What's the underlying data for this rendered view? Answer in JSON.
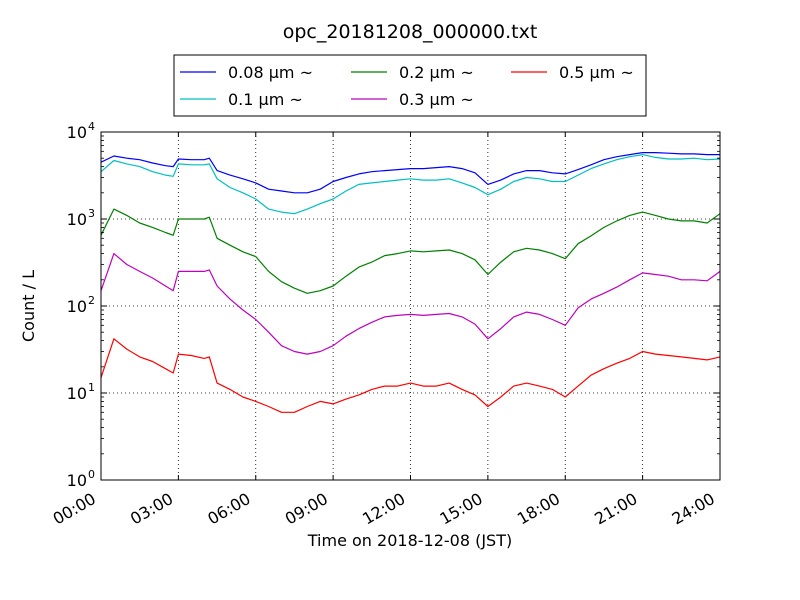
{
  "chart_data": {
    "type": "line",
    "title": "opc_20181208_000000.txt",
    "xlabel": "Time on 2018-12-08 (JST)",
    "ylabel": "Count / L",
    "yscale": "log",
    "xlim": [
      0,
      24
    ],
    "ylim": [
      1,
      10000
    ],
    "x_ticks": [
      {
        "value": 0,
        "label": "00:00"
      },
      {
        "value": 3,
        "label": "03:00"
      },
      {
        "value": 6,
        "label": "06:00"
      },
      {
        "value": 9,
        "label": "09:00"
      },
      {
        "value": 12,
        "label": "12:00"
      },
      {
        "value": 15,
        "label": "15:00"
      },
      {
        "value": 18,
        "label": "18:00"
      },
      {
        "value": 21,
        "label": "21:00"
      },
      {
        "value": 24,
        "label": "24:00"
      }
    ],
    "y_ticks": [
      {
        "value": 1,
        "base": "10",
        "exp": "0"
      },
      {
        "value": 10,
        "base": "10",
        "exp": "1"
      },
      {
        "value": 100,
        "base": "10",
        "exp": "2"
      },
      {
        "value": 1000,
        "base": "10",
        "exp": "3"
      },
      {
        "value": 10000,
        "base": "10",
        "exp": "4"
      }
    ],
    "grid": true,
    "legend_position": "top-center, above plot",
    "x": [
      0,
      0.5,
      1,
      1.5,
      2,
      2.5,
      2.8,
      3,
      3.5,
      4,
      4.2,
      4.5,
      5,
      5.5,
      6,
      6.5,
      7,
      7.5,
      8,
      8.5,
      9,
      9.5,
      10,
      10.5,
      11,
      11.5,
      12,
      12.5,
      13,
      13.5,
      14,
      14.5,
      15,
      15.5,
      16,
      16.5,
      17,
      17.5,
      18,
      18.5,
      19,
      19.5,
      20,
      20.5,
      21,
      21.5,
      22,
      22.5,
      23,
      23.5,
      24
    ],
    "series": [
      {
        "name": "0.08 μm ~",
        "color": "#0000ff",
        "values": [
          4500,
          5300,
          5000,
          4800,
          4400,
          4100,
          4000,
          4900,
          4800,
          4800,
          5000,
          3600,
          3200,
          2900,
          2600,
          2200,
          2100,
          2000,
          2000,
          2200,
          2700,
          3000,
          3300,
          3500,
          3600,
          3700,
          3800,
          3800,
          3900,
          4000,
          3800,
          3400,
          2500,
          2800,
          3300,
          3600,
          3600,
          3400,
          3300,
          3700,
          4200,
          4800,
          5200,
          5500,
          5800,
          5800,
          5700,
          5600,
          5600,
          5500,
          5500
        ]
      },
      {
        "name": "0.1 μm ~",
        "color": "#00bfbf",
        "values": [
          3500,
          4700,
          4300,
          4000,
          3500,
          3200,
          3100,
          4300,
          4200,
          4200,
          4300,
          2900,
          2300,
          2000,
          1700,
          1300,
          1200,
          1150,
          1300,
          1500,
          1700,
          2100,
          2500,
          2600,
          2700,
          2800,
          2900,
          2800,
          2800,
          2900,
          2600,
          2300,
          1900,
          2200,
          2700,
          3000,
          2900,
          2700,
          2700,
          3200,
          3800,
          4300,
          4800,
          5200,
          5500,
          5100,
          4900,
          4900,
          5000,
          4800,
          4900
        ]
      },
      {
        "name": "0.2 μm ~",
        "color": "#008000",
        "values": [
          650,
          1300,
          1100,
          900,
          800,
          700,
          650,
          1000,
          1000,
          1000,
          1050,
          600,
          500,
          420,
          370,
          250,
          190,
          160,
          140,
          150,
          170,
          220,
          280,
          320,
          380,
          400,
          430,
          420,
          430,
          440,
          400,
          340,
          230,
          320,
          420,
          460,
          440,
          400,
          350,
          520,
          640,
          800,
          950,
          1100,
          1200,
          1100,
          1000,
          950,
          950,
          900,
          1150
        ]
      },
      {
        "name": "0.3 μm ~",
        "color": "#bf00bf",
        "values": [
          150,
          400,
          300,
          250,
          210,
          170,
          150,
          250,
          250,
          250,
          260,
          170,
          120,
          90,
          70,
          50,
          35,
          30,
          28,
          30,
          35,
          45,
          55,
          65,
          75,
          78,
          80,
          78,
          80,
          82,
          75,
          62,
          42,
          55,
          75,
          85,
          80,
          70,
          60,
          95,
          120,
          140,
          165,
          200,
          240,
          230,
          220,
          200,
          200,
          195,
          250
        ]
      },
      {
        "name": "0.5 μm ~",
        "color": "#ff0000",
        "values": [
          15,
          42,
          32,
          26,
          23,
          19,
          17,
          28,
          27,
          25,
          26,
          13,
          11,
          9,
          8,
          7,
          6,
          6,
          7,
          8,
          7.5,
          8.5,
          9.5,
          11,
          12,
          12,
          13,
          12,
          12,
          13,
          11,
          9.5,
          7,
          9,
          12,
          13,
          12,
          11,
          9,
          12,
          16,
          19,
          22,
          25,
          30,
          28,
          27,
          26,
          25,
          24,
          26
        ]
      }
    ]
  }
}
